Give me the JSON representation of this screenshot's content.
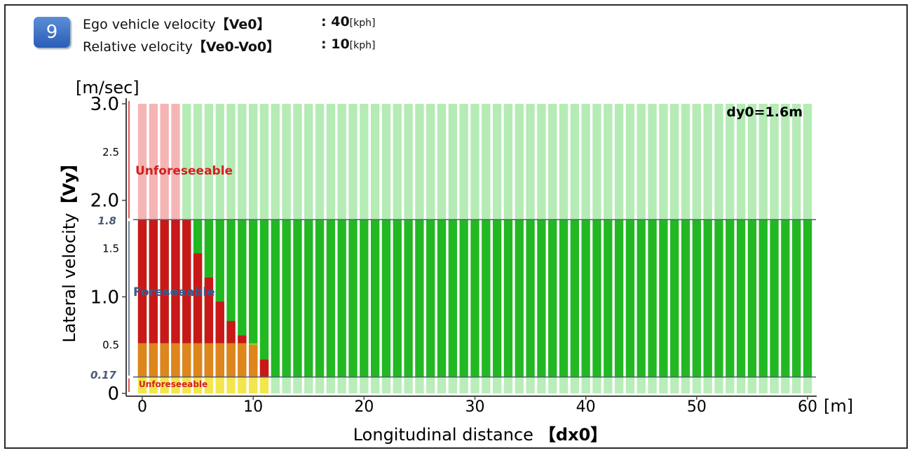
{
  "badge": "9",
  "header": {
    "line1": {
      "label": "Ego vehicle velocity",
      "var": "【Ve0】",
      "value": "40",
      "unit": "[kph]",
      "colon": ": "
    },
    "line2": {
      "label": "Relative velocity",
      "var": "【Ve0-Vo0】",
      "value": "10",
      "unit": "[kph]",
      "colon": ": "
    }
  },
  "chart_data": {
    "type": "heatmap",
    "title": "dy0=1.6m",
    "xlabel_text": "Longitudinal distance",
    "xlabel_var": "【dx0】",
    "x_unit": "[m]",
    "ylabel_text": "Lateral velocity",
    "ylabel_var": "【Vy】",
    "y_unit": "[m/sec]",
    "xlim": [
      0,
      60
    ],
    "ylim": [
      0,
      3.0
    ],
    "x_ticks": [
      0,
      10,
      20,
      30,
      40,
      50,
      60
    ],
    "y_ticks_major": [
      "0",
      "1.0",
      "2.0",
      "3.0"
    ],
    "y_ticks_minor": [
      "0.5",
      "1.5",
      "2.5"
    ],
    "thresholds": {
      "lower": "0.17",
      "upper": "1.8"
    },
    "zones": [
      {
        "name": "Unforeseeable",
        "range": [
          1.8,
          3.0
        ],
        "color": "#d42020"
      },
      {
        "name": "Foreseeable",
        "range": [
          0.17,
          1.8
        ],
        "color": "#3a5a8c"
      },
      {
        "name": "Unforeseeable",
        "range": [
          0,
          0.17
        ],
        "color": "#d42020"
      }
    ],
    "columns_x_step": 1,
    "red_boundary_vy": [
      1.8,
      1.8,
      1.8,
      1.8,
      1.8,
      1.45,
      1.2,
      0.95,
      0.75,
      0.6,
      0.5,
      0.35
    ],
    "colors": {
      "collision": "#c81818",
      "no_collision": "#22b822",
      "marginal": "#f0e020",
      "faded": "#f4a8a8",
      "faded_green": "#a8e8a8"
    }
  }
}
